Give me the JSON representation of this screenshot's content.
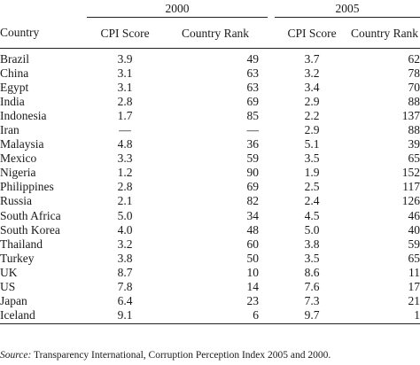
{
  "header": {
    "years": [
      "2000",
      "2005"
    ],
    "columns": {
      "country": "Country",
      "cpi_2000": "CPI Score",
      "rank_2000": "Country Rank",
      "cpi_2005": "CPI Score",
      "rank_2005": "Country Rank"
    }
  },
  "rows": [
    {
      "country": "Brazil",
      "cpi_2000": "3.9",
      "rank_2000": "49",
      "cpi_2005": "3.7",
      "rank_2005": "62"
    },
    {
      "country": "China",
      "cpi_2000": "3.1",
      "rank_2000": "63",
      "cpi_2005": "3.2",
      "rank_2005": "78"
    },
    {
      "country": "Egypt",
      "cpi_2000": "3.1",
      "rank_2000": "63",
      "cpi_2005": "3.4",
      "rank_2005": "70"
    },
    {
      "country": "India",
      "cpi_2000": "2.8",
      "rank_2000": "69",
      "cpi_2005": "2.9",
      "rank_2005": "88"
    },
    {
      "country": "Indonesia",
      "cpi_2000": "1.7",
      "rank_2000": "85",
      "cpi_2005": "2.2",
      "rank_2005": "137"
    },
    {
      "country": "Iran",
      "cpi_2000": "—",
      "rank_2000": "—",
      "cpi_2005": "2.9",
      "rank_2005": "88"
    },
    {
      "country": "Malaysia",
      "cpi_2000": "4.8",
      "rank_2000": "36",
      "cpi_2005": "5.1",
      "rank_2005": "39"
    },
    {
      "country": "Mexico",
      "cpi_2000": "3.3",
      "rank_2000": "59",
      "cpi_2005": "3.5",
      "rank_2005": "65"
    },
    {
      "country": "Nigeria",
      "cpi_2000": "1.2",
      "rank_2000": "90",
      "cpi_2005": "1.9",
      "rank_2005": "152"
    },
    {
      "country": "Philippines",
      "cpi_2000": "2.8",
      "rank_2000": "69",
      "cpi_2005": "2.5",
      "rank_2005": "117"
    },
    {
      "country": "Russia",
      "cpi_2000": "2.1",
      "rank_2000": "82",
      "cpi_2005": "2.4",
      "rank_2005": "126"
    },
    {
      "country": "South Africa",
      "cpi_2000": "5.0",
      "rank_2000": "34",
      "cpi_2005": "4.5",
      "rank_2005": "46"
    },
    {
      "country": "South Korea",
      "cpi_2000": "4.0",
      "rank_2000": "48",
      "cpi_2005": "5.0",
      "rank_2005": "40"
    },
    {
      "country": "Thailand",
      "cpi_2000": "3.2",
      "rank_2000": "60",
      "cpi_2005": "3.8",
      "rank_2005": "59"
    },
    {
      "country": "Turkey",
      "cpi_2000": "3.8",
      "rank_2000": "50",
      "cpi_2005": "3.5",
      "rank_2005": "65"
    },
    {
      "country": "UK",
      "cpi_2000": "8.7",
      "rank_2000": "10",
      "cpi_2005": "8.6",
      "rank_2005": "11"
    },
    {
      "country": "US",
      "cpi_2000": "7.8",
      "rank_2000": "14",
      "cpi_2005": "7.6",
      "rank_2005": "17"
    },
    {
      "country": "Japan",
      "cpi_2000": "6.4",
      "rank_2000": "23",
      "cpi_2005": "7.3",
      "rank_2005": "21"
    },
    {
      "country": "Iceland",
      "cpi_2000": "9.1",
      "rank_2000": "6",
      "cpi_2005": "9.7",
      "rank_2005": "1"
    }
  ],
  "source": {
    "label": "Source:",
    "text": " Transparency International, Corruption Perception Index 2005 and 2000."
  }
}
